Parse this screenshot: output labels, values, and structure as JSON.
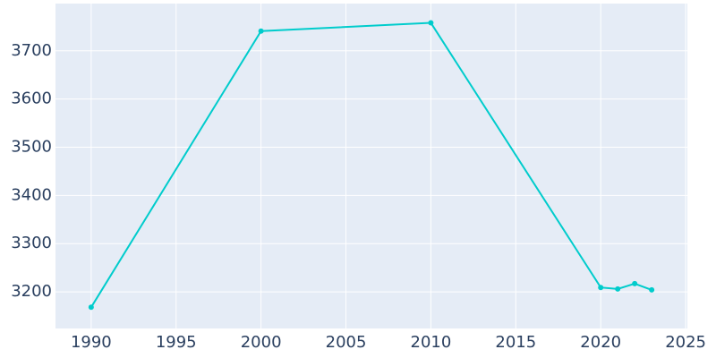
{
  "chart_data": {
    "type": "line",
    "x": [
      1990,
      2000,
      2010,
      2020,
      2021,
      2022,
      2023
    ],
    "series": [
      {
        "color": "#00cccc",
        "values": [
          3168,
          3741,
          3758,
          3209,
          3206,
          3217,
          3204
        ]
      }
    ],
    "xlim": [
      1987.9,
      2025.1
    ],
    "xticks": [
      1990,
      1995,
      2000,
      2005,
      2010,
      2015,
      2020,
      2025
    ],
    "ylim": [
      3124,
      3798
    ],
    "yticks": [
      3200,
      3300,
      3400,
      3500,
      3600,
      3700
    ],
    "grid": true
  }
}
